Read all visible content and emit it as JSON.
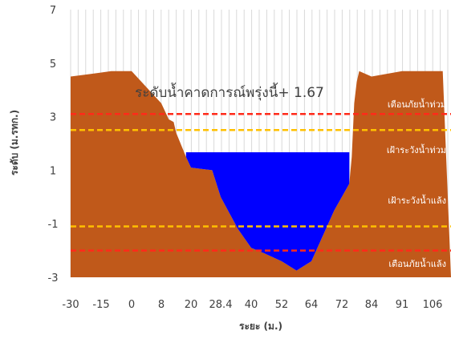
{
  "chart_data": {
    "type": "area",
    "title": "",
    "xlabel": "ระยะ (ม.)",
    "ylabel": "ระดับ (ม.รทก.)",
    "ylim": [
      -3,
      7
    ],
    "y_ticks": [
      "7",
      "5",
      "3",
      "1",
      "-1",
      "-3"
    ],
    "x_tick_labels": [
      "-30",
      "-15",
      "0",
      "8",
      "20",
      "28.4",
      "40",
      "52",
      "64",
      "72",
      "84",
      "91",
      "106"
    ],
    "grid": "vertical",
    "annotation": "ระดับน้ำคาดการณ์พรุ่งนี้+ 1.67",
    "water_level": 1.67,
    "series": [
      {
        "kind": "terrain",
        "color": "#c0591a",
        "x": [
          -30,
          -20,
          -10,
          0,
          8,
          11,
          13,
          14,
          18,
          20,
          26,
          28.4,
          35,
          40,
          45,
          52,
          58,
          64,
          70,
          75,
          76,
          77,
          78,
          79,
          84,
          91,
          96,
          101,
          106,
          111
        ],
        "y": [
          4.5,
          4.6,
          4.7,
          4.7,
          3.5,
          2.9,
          2.8,
          2.4,
          1.5,
          1.1,
          1.0,
          0.0,
          -1.2,
          -1.9,
          -2.1,
          -2.4,
          -2.75,
          -2.4,
          -0.5,
          0.5,
          1.5,
          3.5,
          4.3,
          4.7,
          4.5,
          4.7,
          4.7,
          4.7,
          4.7,
          4.7
        ]
      },
      {
        "kind": "water",
        "color": "#0000ff",
        "x_range": [
          18,
          75
        ]
      }
    ],
    "threshold_lines": [
      {
        "label": "เตือนภัยน้ำท่วม",
        "value": 3.1,
        "color": "#ff2a1a",
        "style": "dashed"
      },
      {
        "label": "เฝ้าระวังน้ำท่วม",
        "value": 2.5,
        "color": "#ffc000",
        "style": "dashed"
      },
      {
        "label": "เฝ้าระวังน้ำแล้ง",
        "value": -1.1,
        "color": "#ffc000",
        "style": "dashed"
      },
      {
        "label": "เตือนภัยน้ำแล้ง",
        "value": -2.0,
        "color": "#ff2a1a",
        "style": "dashed"
      }
    ]
  }
}
